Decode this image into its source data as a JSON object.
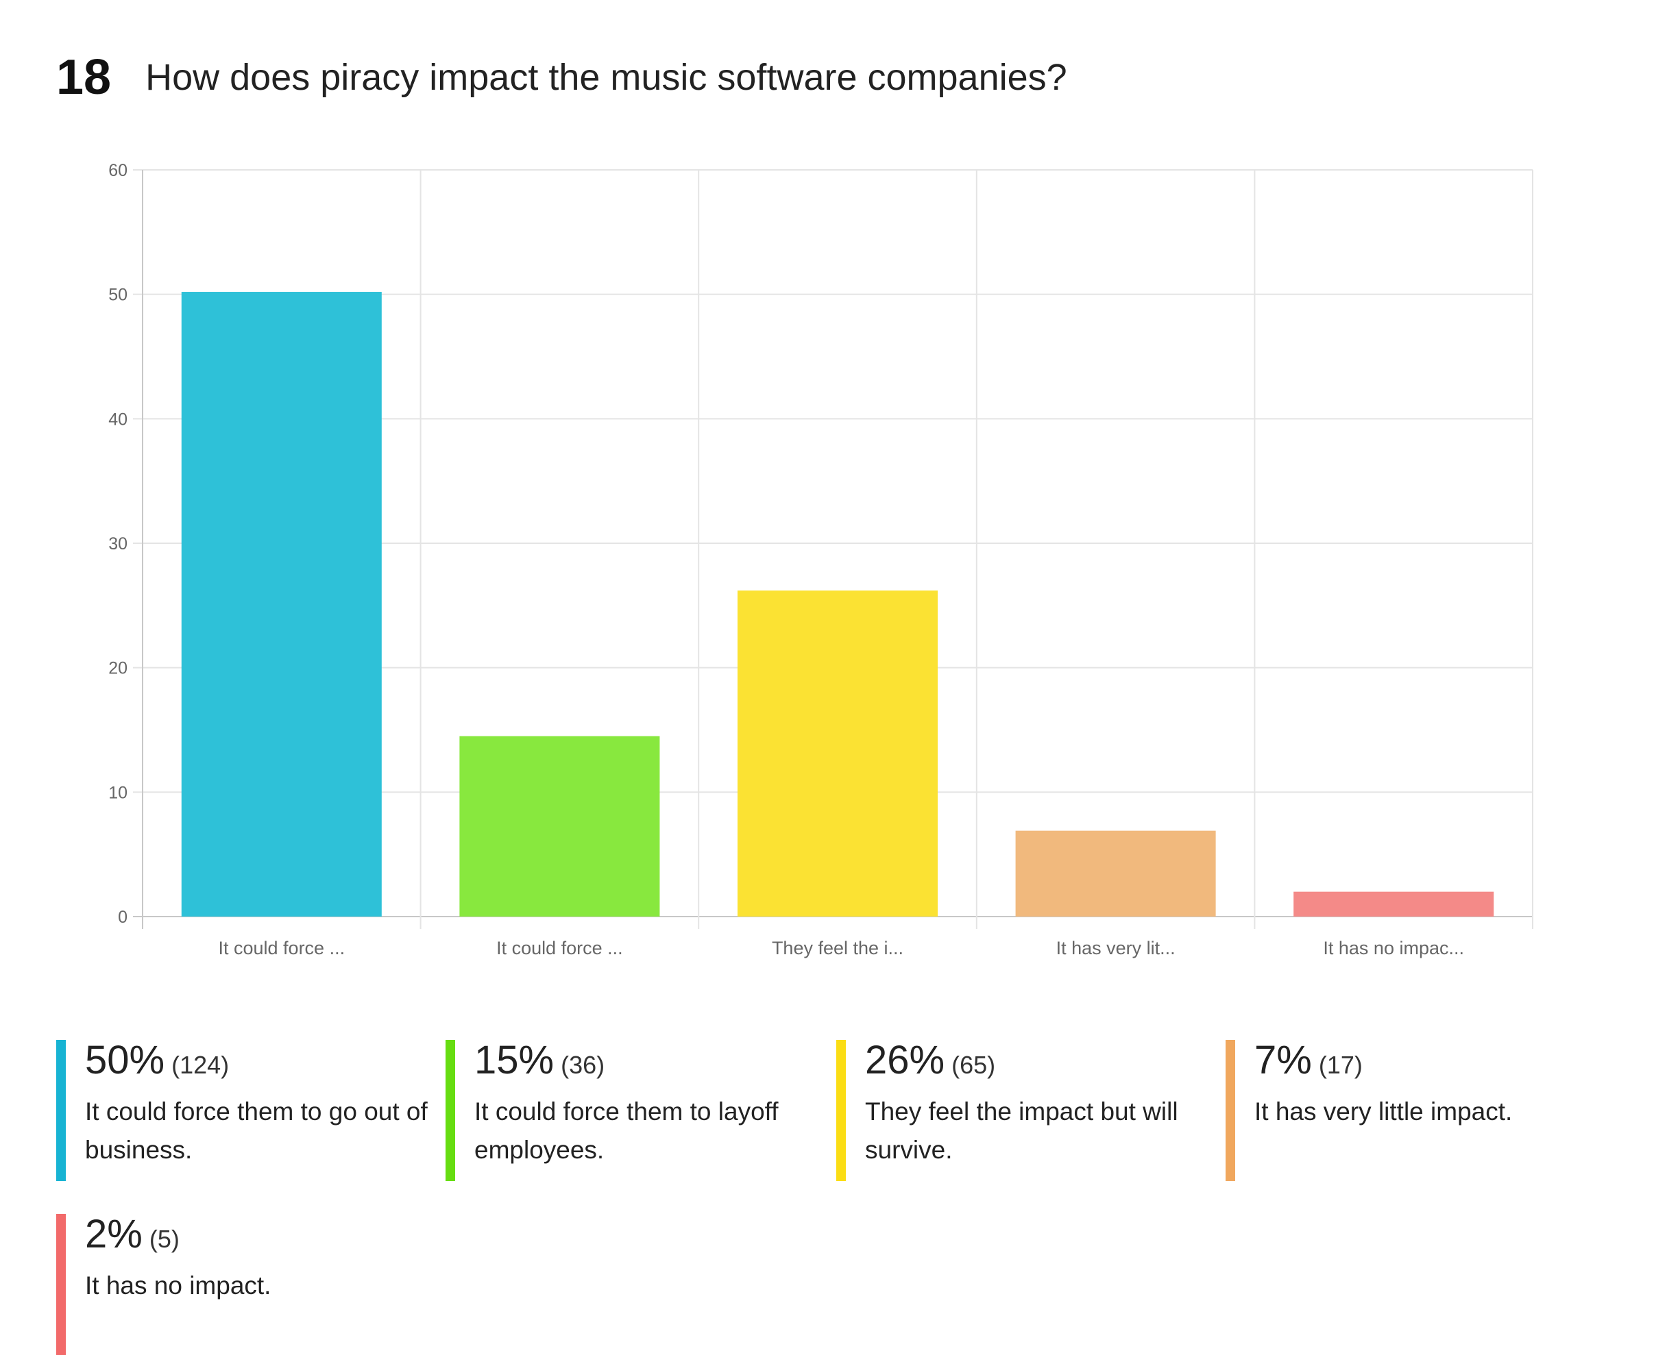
{
  "question": {
    "number": "18",
    "title": "How does piracy impact the music software companies?"
  },
  "chart_data": {
    "type": "bar",
    "categories": [
      "It could force ...",
      "It could force ...",
      "They feel the i...",
      "It has very lit...",
      "It has no impac..."
    ],
    "values": [
      50.2,
      14.5,
      26.2,
      6.9,
      2.0
    ],
    "colors": [
      "#2ec1d8",
      "#88e83e",
      "#fbe233",
      "#f1b97d",
      "#f48a88"
    ],
    "ylim": [
      0,
      60
    ],
    "yticks": [
      0,
      10,
      20,
      30,
      40,
      50,
      60
    ],
    "grid": true,
    "title": "",
    "xlabel": "",
    "ylabel": ""
  },
  "legend": [
    {
      "pct": "50%",
      "count": "(124)",
      "label": "It could force them to go out of business.",
      "color": "#17b3d3"
    },
    {
      "pct": "15%",
      "count": "(36)",
      "label": "It could force them to layoff employees.",
      "color": "#66dd11"
    },
    {
      "pct": "26%",
      "count": "(65)",
      "label": "They feel the impact but will survive.",
      "color": "#fbdd14"
    },
    {
      "pct": "7%",
      "count": "(17)",
      "label": "It has very little impact.",
      "color": "#f0a75e"
    },
    {
      "pct": "2%",
      "count": "(5)",
      "label": "It has no impact.",
      "color": "#f26a6a"
    }
  ]
}
